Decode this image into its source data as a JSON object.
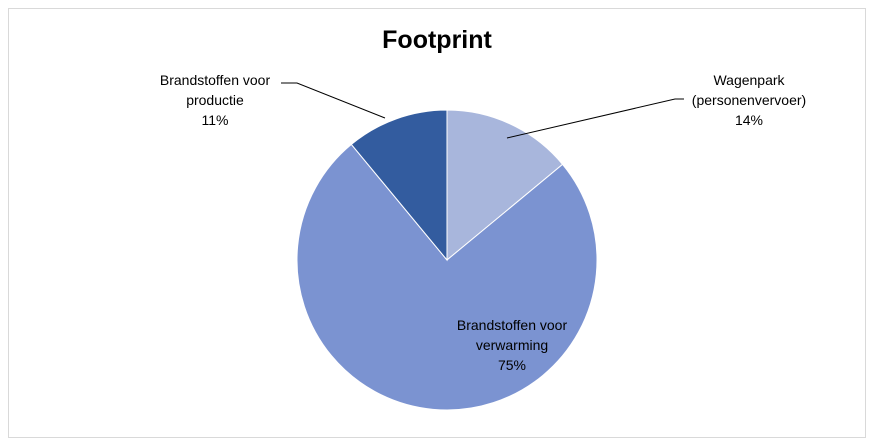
{
  "chart_data": {
    "type": "pie",
    "title": "Footprint",
    "slices": [
      {
        "label_lines": [
          "Wagenpark",
          "(personenvervoer)"
        ],
        "value": 14,
        "value_label": "14%",
        "color": "#a8b6dc"
      },
      {
        "label_lines": [
          "Brandstoffen voor",
          "verwarming"
        ],
        "value": 75,
        "value_label": "75%",
        "color": "#7b93d1"
      },
      {
        "label_lines": [
          "Brandstoffen voor",
          "productie"
        ],
        "value": 11,
        "value_label": "11%",
        "color": "#335c9f"
      }
    ],
    "legend": "none"
  }
}
